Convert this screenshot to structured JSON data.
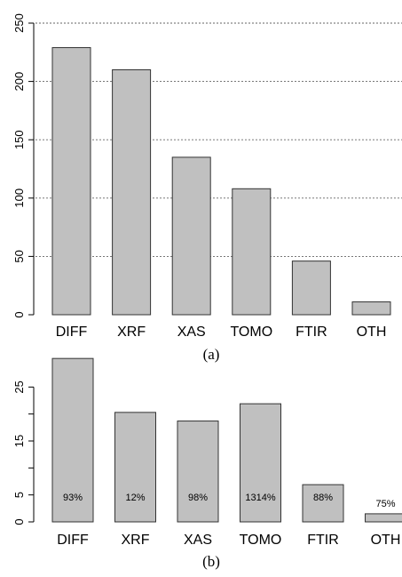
{
  "chart_data": [
    {
      "type": "bar",
      "panel_label": "(a)",
      "panel_letter": "a",
      "categories": [
        "DIFF",
        "XRF",
        "XAS",
        "TOMO",
        "FTIR",
        "OTH"
      ],
      "values": [
        229,
        210,
        135,
        108,
        46,
        11
      ],
      "ylim": [
        0,
        250
      ],
      "yticks": [
        0,
        50,
        100,
        150,
        200,
        250
      ],
      "title": "",
      "xlabel": "",
      "ylabel": "",
      "grid": "horizontal dotted",
      "bar_color": "#c0c0c0"
    },
    {
      "type": "bar",
      "panel_label": "(b)",
      "panel_letter": "b",
      "categories": [
        "DIFF",
        "XRF",
        "XAS",
        "TOMO",
        "FTIR",
        "OTH"
      ],
      "values": [
        30.3,
        20.3,
        18.7,
        21.9,
        6.9,
        1.5
      ],
      "bar_labels": [
        "93%",
        "12%",
        "98%",
        "1314%",
        "88%",
        "75%"
      ],
      "ylim": [
        0,
        30
      ],
      "yticks": [
        0,
        5,
        15,
        25
      ],
      "title": "",
      "xlabel": "",
      "ylabel": "",
      "grid": "none",
      "bar_color": "#c0c0c0"
    }
  ]
}
